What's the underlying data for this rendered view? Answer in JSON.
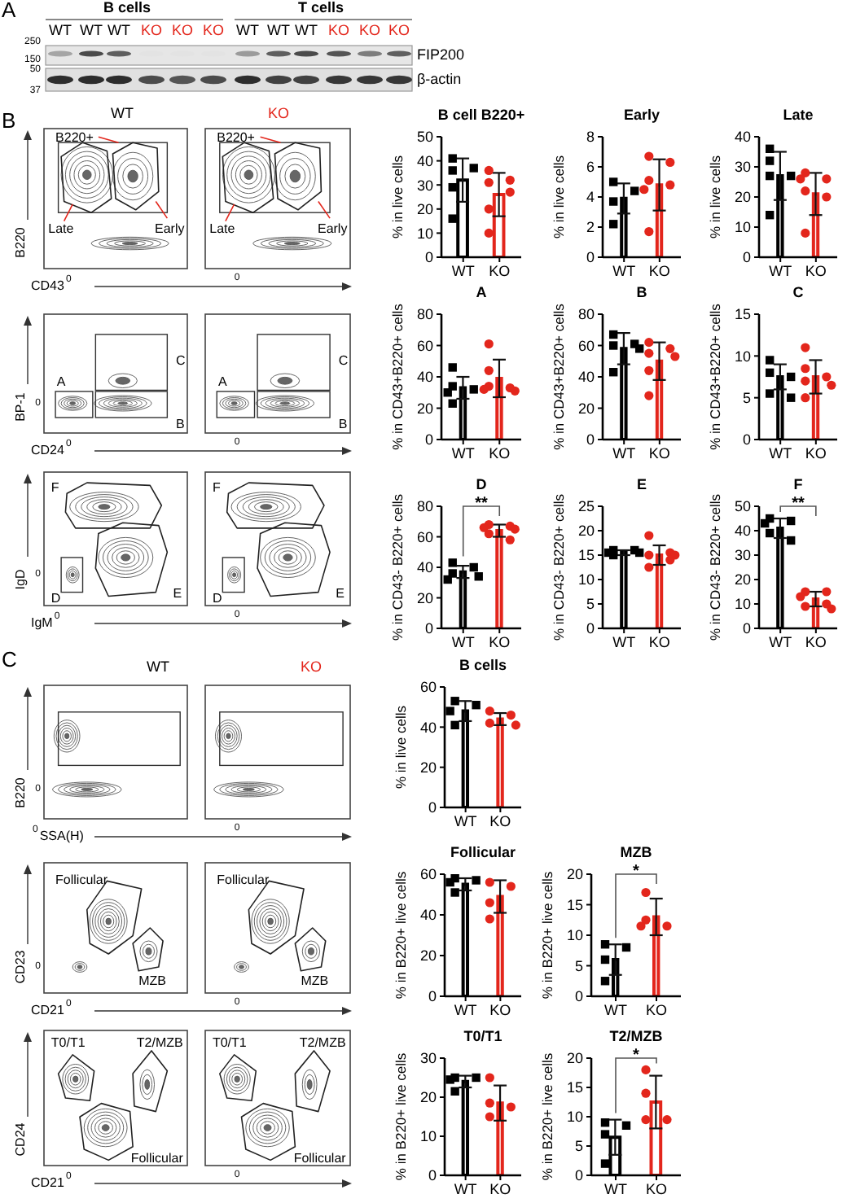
{
  "chart_data": [
    {
      "type": "other",
      "categories": [
        "WT",
        "WT",
        "WT",
        "KO",
        "KO",
        "KO",
        "WT",
        "WT",
        "WT",
        "KO",
        "KO",
        "KO"
      ],
      "colors": [
        "#000000",
        "#000000",
        "#000000",
        "#e3261c",
        "#e3261c",
        "#e3261c",
        "#000000",
        "#000000",
        "#000000",
        "#e3261c",
        "#e3261c",
        "#e3261c"
      ],
      "annotations": [
        "A",
        "B cells",
        "T cells",
        "250",
        "150",
        "50",
        "37",
        "FIP200",
        "β-actin"
      ]
    },
    {
      "type": "other",
      "categories": [
        "WT",
        "KO"
      ],
      "colors": [
        "#000000",
        "#e3261c"
      ],
      "xlabel": "CD43",
      "ylabel": "B220",
      "annotations": [
        "B",
        "B220+",
        "Late",
        "Early",
        "B220+",
        "Late",
        "Early",
        "0",
        "0"
      ]
    },
    {
      "type": "bar",
      "title": "B cell B220+",
      "ylabel": "% in live cells",
      "categories": [
        "WT",
        "KO"
      ],
      "series": [
        {
          "type": "bar",
          "colors": [
            "#000000",
            "#e3261c"
          ],
          "values": [
            32,
            26
          ],
          "errors": [
            9,
            9
          ]
        },
        {
          "type": "scatter",
          "color": "#000000",
          "marker": "square",
          "x": [
            "WT",
            "WT",
            "WT",
            "WT",
            "WT"
          ],
          "values": [
            41,
            37,
            36,
            29,
            16
          ]
        },
        {
          "type": "scatter",
          "color": "#e3261c",
          "marker": "circle",
          "x": [
            "KO",
            "KO",
            "KO",
            "KO",
            "KO",
            "KO"
          ],
          "values": [
            36,
            32,
            31,
            27,
            20,
            10
          ]
        }
      ],
      "ylim": [
        0,
        50
      ],
      "yticks": [
        0,
        10,
        20,
        30,
        40,
        50
      ]
    },
    {
      "type": "bar",
      "title": "Early",
      "ylabel": "% in live cells",
      "categories": [
        "WT",
        "KO"
      ],
      "series": [
        {
          "type": "bar",
          "colors": [
            "#000000",
            "#e3261c"
          ],
          "values": [
            3.9,
            4.8
          ],
          "errors": [
            1.0,
            1.7
          ]
        },
        {
          "type": "scatter",
          "color": "#000000",
          "marker": "square",
          "x": [
            "WT",
            "WT",
            "WT",
            "WT"
          ],
          "values": [
            5.0,
            4.4,
            3.7,
            2.2
          ]
        },
        {
          "type": "scatter",
          "color": "#e3261c",
          "marker": "circle",
          "x": [
            "KO",
            "KO",
            "KO",
            "KO",
            "KO",
            "KO"
          ],
          "values": [
            6.7,
            6.3,
            5.1,
            4.8,
            4.5,
            1.7
          ]
        }
      ],
      "ylim": [
        0,
        8
      ],
      "yticks": [
        0,
        2,
        4,
        6,
        8
      ]
    },
    {
      "type": "bar",
      "title": "Late",
      "ylabel": "% in live cells",
      "categories": [
        "WT",
        "KO"
      ],
      "series": [
        {
          "type": "bar",
          "colors": [
            "#000000",
            "#e3261c"
          ],
          "values": [
            27,
            21
          ],
          "errors": [
            8,
            7
          ]
        },
        {
          "type": "scatter",
          "color": "#000000",
          "marker": "square",
          "x": [
            "WT",
            "WT",
            "WT",
            "WT",
            "WT"
          ],
          "values": [
            36,
            32,
            27,
            27,
            14
          ]
        },
        {
          "type": "scatter",
          "color": "#e3261c",
          "marker": "circle",
          "x": [
            "KO",
            "KO",
            "KO",
            "KO",
            "KO",
            "KO"
          ],
          "values": [
            28,
            26,
            26,
            22,
            20,
            8
          ]
        }
      ],
      "ylim": [
        0,
        40
      ],
      "yticks": [
        0,
        10,
        20,
        30,
        40
      ]
    },
    {
      "type": "other",
      "xlabel": "CD24",
      "ylabel": "BP-1",
      "annotations": [
        "C",
        "A",
        "B",
        "C",
        "A",
        "B",
        "0",
        "0",
        "0"
      ]
    },
    {
      "type": "bar",
      "title": "A",
      "ylabel": "% in CD43+B220+ cells",
      "categories": [
        "WT",
        "KO"
      ],
      "series": [
        {
          "type": "bar",
          "colors": [
            "#000000",
            "#e3261c"
          ],
          "values": [
            33,
            39
          ],
          "errors": [
            7,
            12
          ]
        },
        {
          "type": "scatter",
          "color": "#000000",
          "marker": "square",
          "x": [
            "WT",
            "WT",
            "WT",
            "WT",
            "WT"
          ],
          "values": [
            46,
            34,
            32,
            30,
            23
          ]
        },
        {
          "type": "scatter",
          "color": "#e3261c",
          "marker": "circle",
          "x": [
            "KO",
            "KO",
            "KO",
            "KO",
            "KO",
            "KO"
          ],
          "values": [
            61,
            44,
            34,
            33,
            32,
            31
          ]
        }
      ],
      "ylim": [
        0,
        80
      ],
      "yticks": [
        0,
        20,
        40,
        60,
        80
      ]
    },
    {
      "type": "bar",
      "title": "B",
      "ylabel": "% in CD43+B220+ cells",
      "categories": [
        "WT",
        "KO"
      ],
      "series": [
        {
          "type": "bar",
          "colors": [
            "#000000",
            "#e3261c"
          ],
          "values": [
            58,
            50
          ],
          "errors": [
            10,
            12
          ]
        },
        {
          "type": "scatter",
          "color": "#000000",
          "marker": "square",
          "x": [
            "WT",
            "WT",
            "WT",
            "WT",
            "WT"
          ],
          "values": [
            67,
            61,
            60,
            58,
            43
          ]
        },
        {
          "type": "scatter",
          "color": "#e3261c",
          "marker": "circle",
          "x": [
            "KO",
            "KO",
            "KO",
            "KO",
            "KO",
            "KO"
          ],
          "values": [
            62,
            58,
            55,
            53,
            44,
            28
          ]
        }
      ],
      "ylim": [
        0,
        80
      ],
      "yticks": [
        0,
        20,
        40,
        60,
        80
      ]
    },
    {
      "type": "bar",
      "title": "C",
      "ylabel": "% in CD43+B220+ cells",
      "categories": [
        "WT",
        "KO"
      ],
      "series": [
        {
          "type": "bar",
          "colors": [
            "#000000",
            "#e3261c"
          ],
          "values": [
            7.5,
            7.5
          ],
          "errors": [
            1.5,
            2
          ]
        },
        {
          "type": "scatter",
          "color": "#000000",
          "marker": "square",
          "x": [
            "WT",
            "WT",
            "WT",
            "WT",
            "WT"
          ],
          "values": [
            9.5,
            8,
            7.5,
            5.5,
            5
          ]
        },
        {
          "type": "scatter",
          "color": "#e3261c",
          "marker": "circle",
          "x": [
            "KO",
            "KO",
            "KO",
            "KO",
            "KO",
            "KO"
          ],
          "values": [
            11,
            8.5,
            7.5,
            7,
            6.5,
            5
          ]
        }
      ],
      "ylim": [
        0,
        15
      ],
      "yticks": [
        0,
        5,
        10,
        15
      ]
    },
    {
      "type": "other",
      "xlabel": "IgM",
      "ylabel": "IgD",
      "annotations": [
        "F",
        "D",
        "E",
        "F",
        "D",
        "E",
        "0",
        "0",
        "0"
      ]
    },
    {
      "type": "bar",
      "title": "D",
      "ylabel": "% in CD43- B220+ cells",
      "categories": [
        "WT",
        "KO"
      ],
      "series": [
        {
          "type": "bar",
          "colors": [
            "#000000",
            "#e3261c"
          ],
          "values": [
            37,
            64
          ],
          "errors": [
            4,
            4
          ]
        },
        {
          "type": "scatter",
          "color": "#000000",
          "marker": "square",
          "x": [
            "WT",
            "WT",
            "WT",
            "WT",
            "WT"
          ],
          "values": [
            43,
            40,
            36,
            34,
            32
          ]
        },
        {
          "type": "scatter",
          "color": "#e3261c",
          "marker": "circle",
          "x": [
            "KO",
            "KO",
            "KO",
            "KO",
            "KO",
            "KO"
          ],
          "values": [
            68,
            67,
            66,
            65,
            62,
            58
          ]
        }
      ],
      "ylim": [
        0,
        80
      ],
      "yticks": [
        0,
        20,
        40,
        60,
        80
      ],
      "annotations": [
        "**"
      ]
    },
    {
      "type": "bar",
      "title": "E",
      "ylabel": "% in CD43- B220+ cells",
      "categories": [
        "WT",
        "KO"
      ],
      "series": [
        {
          "type": "bar",
          "colors": [
            "#000000",
            "#e3261c"
          ],
          "values": [
            15.5,
            15
          ],
          "errors": [
            0.5,
            2
          ]
        },
        {
          "type": "scatter",
          "color": "#000000",
          "marker": "square",
          "x": [
            "WT",
            "WT",
            "WT",
            "WT",
            "WT"
          ],
          "values": [
            16,
            16,
            15.5,
            15.5,
            15
          ]
        },
        {
          "type": "scatter",
          "color": "#e3261c",
          "marker": "circle",
          "x": [
            "KO",
            "KO",
            "KO",
            "KO",
            "KO",
            "KO"
          ],
          "values": [
            19,
            15.5,
            15,
            15,
            14,
            12.5
          ]
        }
      ],
      "ylim": [
        0,
        25
      ],
      "yticks": [
        0,
        5,
        10,
        15,
        20,
        25
      ]
    },
    {
      "type": "bar",
      "title": "F",
      "ylabel": "% in CD43- B220+ cells",
      "categories": [
        "WT",
        "KO"
      ],
      "series": [
        {
          "type": "bar",
          "colors": [
            "#000000",
            "#e3261c"
          ],
          "values": [
            41,
            12
          ],
          "errors": [
            4,
            3
          ]
        },
        {
          "type": "scatter",
          "color": "#000000",
          "marker": "square",
          "x": [
            "WT",
            "WT",
            "WT",
            "WT",
            "WT"
          ],
          "values": [
            45,
            44,
            43,
            39,
            36
          ]
        },
        {
          "type": "scatter",
          "color": "#e3261c",
          "marker": "circle",
          "x": [
            "KO",
            "KO",
            "KO",
            "KO",
            "KO",
            "KO"
          ],
          "values": [
            15,
            15,
            13,
            10,
            9,
            8
          ]
        }
      ],
      "ylim": [
        0,
        50
      ],
      "yticks": [
        0,
        10,
        20,
        30,
        40,
        50
      ],
      "annotations": [
        "**"
      ]
    },
    {
      "type": "other",
      "categories": [
        "WT",
        "KO"
      ],
      "colors": [
        "#000000",
        "#e3261c"
      ],
      "xlabel": "SSA(H)",
      "ylabel": "B220",
      "annotations": [
        "C",
        "0",
        "0",
        "0"
      ]
    },
    {
      "type": "bar",
      "title": "B cells",
      "ylabel": "% in live cells",
      "categories": [
        "WT",
        "KO"
      ],
      "series": [
        {
          "type": "bar",
          "colors": [
            "#000000",
            "#e3261c"
          ],
          "values": [
            48,
            44
          ],
          "errors": [
            5,
            3
          ]
        },
        {
          "type": "scatter",
          "color": "#000000",
          "marker": "square",
          "x": [
            "WT",
            "WT",
            "WT",
            "WT"
          ],
          "values": [
            53,
            51,
            48,
            41
          ]
        },
        {
          "type": "scatter",
          "color": "#e3261c",
          "marker": "circle",
          "x": [
            "KO",
            "KO",
            "KO",
            "KO"
          ],
          "values": [
            48,
            46,
            42,
            41
          ]
        }
      ],
      "ylim": [
        0,
        60
      ],
      "yticks": [
        0,
        20,
        40,
        60
      ]
    },
    {
      "type": "other",
      "xlabel": "CD21",
      "ylabel": "CD23",
      "annotations": [
        "Follicular",
        "MZB",
        "Follicular",
        "MZB",
        "0",
        "0",
        "0"
      ]
    },
    {
      "type": "bar",
      "title": "Follicular",
      "ylabel": "% in B220+ live cells",
      "categories": [
        "WT",
        "KO"
      ],
      "series": [
        {
          "type": "bar",
          "colors": [
            "#000000",
            "#e3261c"
          ],
          "values": [
            55,
            49
          ],
          "errors": [
            3,
            8
          ]
        },
        {
          "type": "scatter",
          "color": "#000000",
          "marker": "square",
          "x": [
            "WT",
            "WT",
            "WT",
            "WT"
          ],
          "values": [
            58,
            57,
            56,
            51
          ]
        },
        {
          "type": "scatter",
          "color": "#e3261c",
          "marker": "circle",
          "x": [
            "KO",
            "KO",
            "KO",
            "KO"
          ],
          "values": [
            56,
            54,
            46,
            38
          ]
        }
      ],
      "ylim": [
        0,
        60
      ],
      "yticks": [
        0,
        20,
        40,
        60
      ]
    },
    {
      "type": "bar",
      "title": "MZB",
      "ylabel": "% in B220+ live cells",
      "categories": [
        "WT",
        "KO"
      ],
      "series": [
        {
          "type": "bar",
          "colors": [
            "#000000",
            "#e3261c"
          ],
          "values": [
            6,
            13
          ],
          "errors": [
            2.5,
            3
          ]
        },
        {
          "type": "scatter",
          "color": "#000000",
          "marker": "square",
          "x": [
            "WT",
            "WT",
            "WT",
            "WT"
          ],
          "values": [
            8.5,
            8,
            6,
            2.5
          ]
        },
        {
          "type": "scatter",
          "color": "#e3261c",
          "marker": "circle",
          "x": [
            "KO",
            "KO",
            "KO",
            "KO"
          ],
          "values": [
            17,
            12.5,
            11.5,
            11.5
          ]
        }
      ],
      "ylim": [
        0,
        20
      ],
      "yticks": [
        0,
        5,
        10,
        15,
        20
      ],
      "annotations": [
        "*"
      ]
    },
    {
      "type": "other",
      "xlabel": "CD21",
      "ylabel": "CD24",
      "annotations": [
        "T0/T1",
        "T2/MZB",
        "Follicular",
        "T0/T1",
        "T2/MZB",
        "Follicular",
        "0",
        "0"
      ]
    },
    {
      "type": "bar",
      "title": "T0/T1",
      "ylabel": "% in B220+ live cells",
      "categories": [
        "WT",
        "KO"
      ],
      "series": [
        {
          "type": "bar",
          "colors": [
            "#000000",
            "#e3261c"
          ],
          "values": [
            24,
            18.5
          ],
          "errors": [
            1.5,
            4.5
          ]
        },
        {
          "type": "scatter",
          "color": "#000000",
          "marker": "square",
          "x": [
            "WT",
            "WT",
            "WT",
            "WT"
          ],
          "values": [
            25,
            25,
            24.5,
            21.5
          ]
        },
        {
          "type": "scatter",
          "color": "#e3261c",
          "marker": "circle",
          "x": [
            "KO",
            "KO",
            "KO",
            "KO"
          ],
          "values": [
            25,
            18.5,
            17.5,
            15
          ]
        }
      ],
      "ylim": [
        0,
        30
      ],
      "yticks": [
        0,
        10,
        20,
        30
      ]
    },
    {
      "type": "bar",
      "title": "T2/MZB",
      "ylabel": "% in B220+ live cells",
      "categories": [
        "WT",
        "KO"
      ],
      "series": [
        {
          "type": "bar",
          "colors": [
            "#000000",
            "#e3261c"
          ],
          "values": [
            6.5,
            12.5
          ],
          "errors": [
            3,
            4.5
          ]
        },
        {
          "type": "scatter",
          "color": "#000000",
          "marker": "square",
          "x": [
            "WT",
            "WT",
            "WT",
            "WT"
          ],
          "values": [
            9,
            8.5,
            7,
            2
          ]
        },
        {
          "type": "scatter",
          "color": "#e3261c",
          "marker": "circle",
          "x": [
            "KO",
            "KO",
            "KO",
            "KO"
          ],
          "values": [
            18,
            14,
            9.5,
            9.5
          ]
        }
      ],
      "ylim": [
        0,
        20
      ],
      "yticks": [
        0,
        5,
        10,
        15,
        20
      ],
      "annotations": [
        "*"
      ]
    }
  ]
}
